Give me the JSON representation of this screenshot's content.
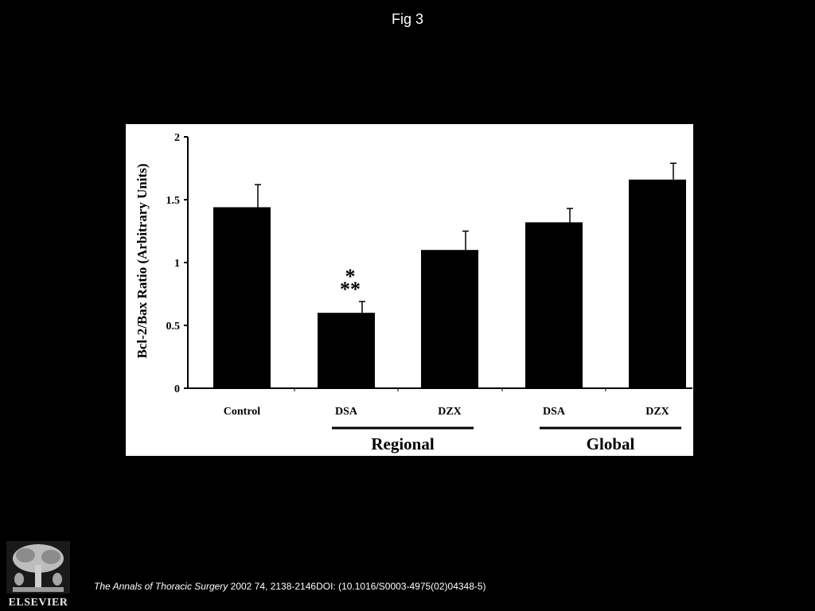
{
  "slide": {
    "title": "Fig 3"
  },
  "chart_data": {
    "type": "bar",
    "title": "",
    "ylabel": "Bcl-2/Bax Ratio (Arbitrary Units)",
    "xlabel": "",
    "ylim": [
      0,
      2
    ],
    "yticks": [
      "0",
      "0.5",
      "1",
      "1.5",
      "2"
    ],
    "ytick_values": [
      0,
      0.5,
      1,
      1.5,
      2
    ],
    "categories": [
      "Control",
      "DSA",
      "DZX",
      "DSA",
      "DZX"
    ],
    "values": [
      1.44,
      0.6,
      1.1,
      1.32,
      1.66
    ],
    "error": [
      0.18,
      0.09,
      0.15,
      0.11,
      0.13
    ],
    "bar_color": "#000000",
    "groups": [
      {
        "label": "Regional",
        "members": [
          1,
          2
        ]
      },
      {
        "label": "Global",
        "members": [
          3,
          4
        ]
      }
    ],
    "annotations": [
      {
        "bar": 1,
        "text": "*"
      },
      {
        "bar": 1,
        "text": "**"
      }
    ],
    "grid": false,
    "legend": "none"
  },
  "footer": {
    "logo_text": "ELSEVIER",
    "logo_icon": "tree-icon",
    "journal": "The Annals of Thoracic Surgery",
    "citation_rest": " 2002 74, 2138-2146DOI: (10.1016/S0003-4975(02)04348-5)"
  }
}
